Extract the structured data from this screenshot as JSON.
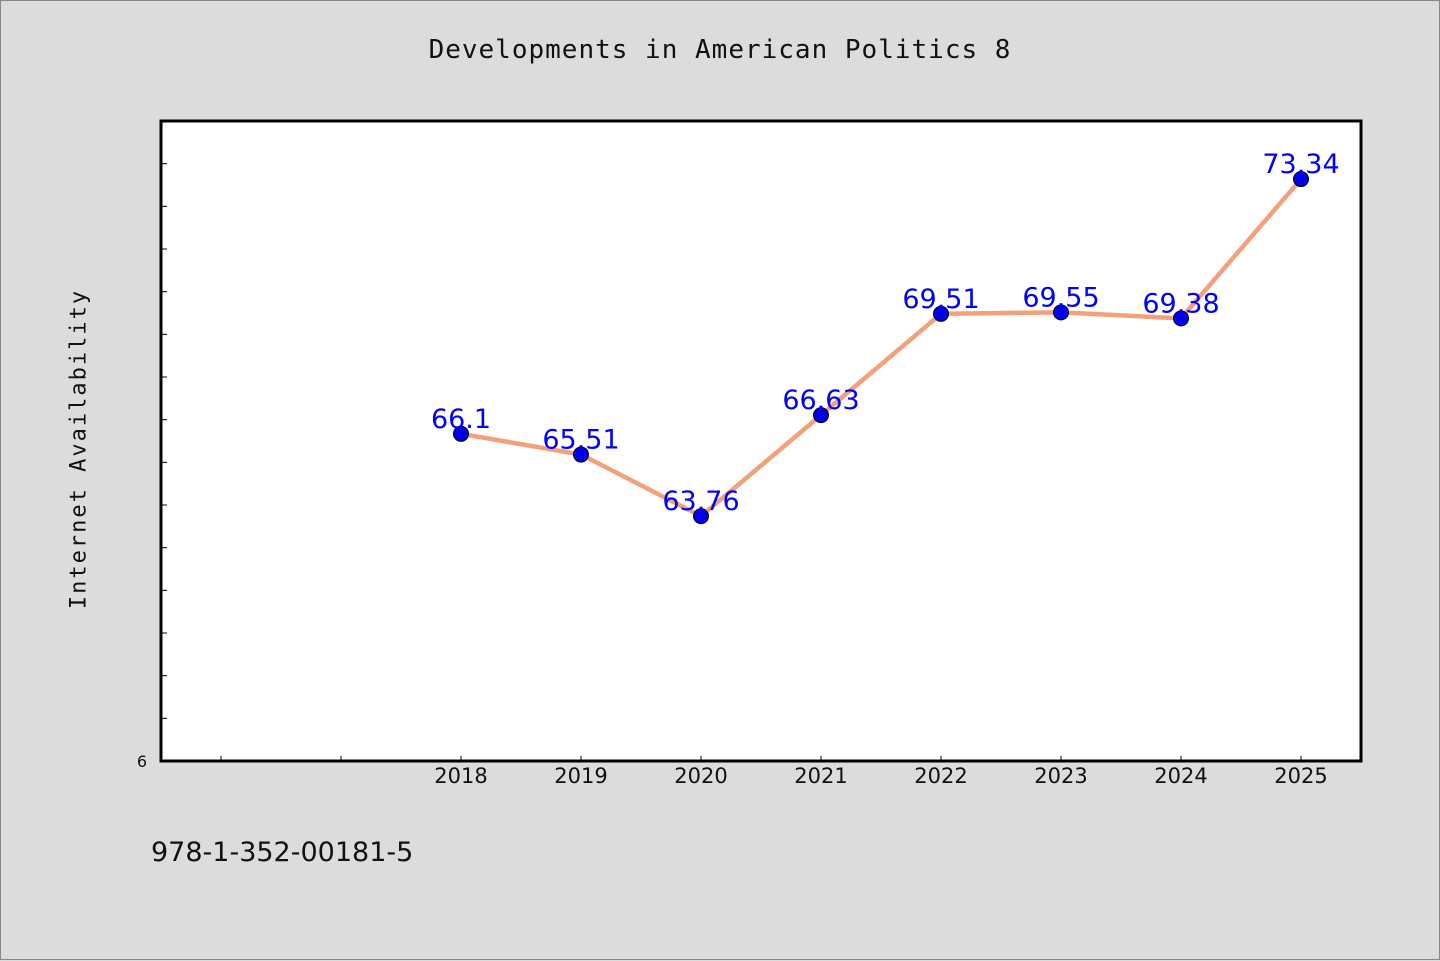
{
  "chart_data": {
    "type": "line",
    "title": "Developments in American Politics 8",
    "xlabel": "",
    "ylabel": "Internet Availability",
    "x": [
      "2018",
      "2019",
      "2020",
      "2021",
      "2022",
      "2023",
      "2024",
      "2025"
    ],
    "series": [
      {
        "values": [
          66.1,
          65.51,
          63.76,
          66.63,
          69.51,
          69.55,
          69.38,
          73.34
        ]
      }
    ],
    "data_labels": [
      "66.1",
      "65.51",
      "63.76",
      "66.63",
      "69.51",
      "69.55",
      "69.38",
      "73.34"
    ],
    "y_tick_label": "6",
    "ylim": [
      56.8,
      74.99
    ],
    "xlim": [
      2015.5,
      2025.5
    ],
    "grid": false,
    "line_color": "#f4a07a",
    "marker_color": "#0000ee",
    "label_color": "#0000ff"
  },
  "footer": {
    "isbn": "978-1-352-00181-5"
  }
}
